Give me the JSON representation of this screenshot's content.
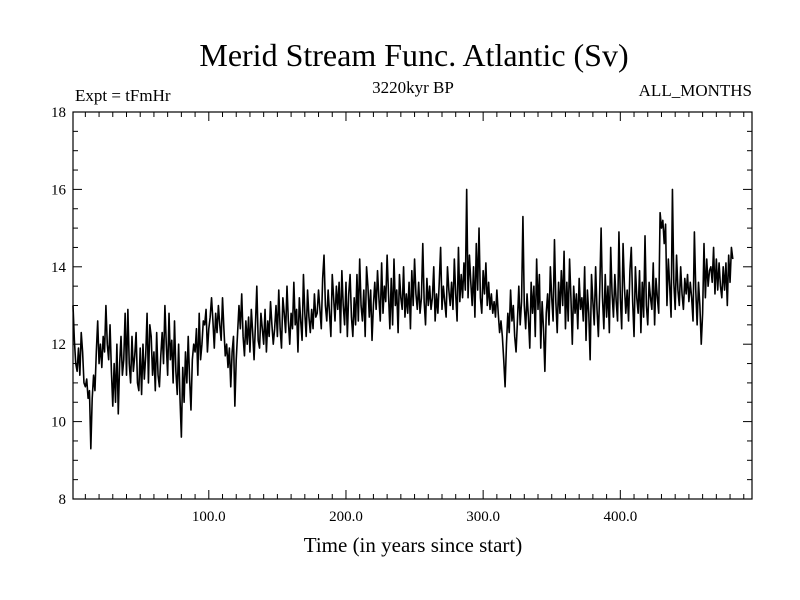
{
  "chart_data": {
    "type": "line",
    "title": "Merid Stream Func. Atlantic (Sv)",
    "left_label": "Expt = tFmHr",
    "center_label": "3220kyr BP",
    "right_label": "ALL_MONTHS",
    "xlabel": "Time (in years since start)",
    "ylabel": "",
    "xlim": [
      1,
      496
    ],
    "ylim": [
      8,
      18
    ],
    "xticks": [
      100,
      200,
      300,
      400
    ],
    "xtick_labels": [
      "100.0",
      "200.0",
      "300.0",
      "400.0"
    ],
    "yticks": [
      8,
      10,
      12,
      14,
      16,
      18
    ],
    "ytick_labels": [
      "8",
      "10",
      "12",
      "14",
      "16",
      "18"
    ],
    "grid": false,
    "line_color": "#000000",
    "series": [
      {
        "name": "Merid Stream Func. Atlantic",
        "x_start": 1,
        "x_step": 1,
        "values": [
          13.0,
          12.1,
          11.5,
          11.3,
          11.9,
          11.2,
          12.3,
          11.8,
          11.0,
          10.9,
          11.1,
          10.6,
          10.8,
          9.3,
          10.6,
          11.2,
          10.8,
          11.8,
          12.6,
          11.5,
          12.0,
          11.4,
          12.2,
          11.8,
          13.0,
          12.0,
          11.6,
          12.5,
          11.3,
          10.4,
          11.5,
          10.5,
          12.0,
          10.2,
          11.5,
          12.2,
          11.2,
          11.6,
          12.8,
          11.2,
          12.9,
          11.5,
          11.0,
          12.2,
          11.3,
          11.7,
          12.3,
          11.0,
          10.8,
          11.9,
          10.7,
          12.0,
          11.1,
          11.7,
          12.8,
          11.0,
          12.5,
          12.2,
          11.2,
          11.8,
          10.8,
          12.3,
          11.2,
          10.9,
          11.7,
          12.3,
          11.5,
          13.0,
          12.0,
          11.2,
          12.8,
          11.6,
          12.1,
          11.0,
          12.6,
          11.3,
          10.7,
          12.0,
          10.6,
          9.6,
          11.4,
          10.5,
          11.8,
          11.0,
          12.2,
          11.1,
          10.3,
          11.6,
          12.0,
          11.8,
          12.4,
          11.2,
          12.8,
          11.6,
          12.0,
          12.6,
          12.5,
          12.9,
          11.8,
          12.4,
          12.7,
          13.2,
          12.6,
          11.9,
          12.8,
          12.3,
          13.0,
          12.5,
          12.1,
          13.2,
          12.4,
          11.7,
          12.0,
          11.4,
          11.9,
          10.9,
          11.8,
          12.2,
          10.4,
          11.6,
          12.3,
          13.0,
          12.4,
          13.3,
          12.2,
          11.7,
          12.6,
          12.0,
          12.7,
          11.8,
          12.9,
          12.3,
          11.6,
          12.5,
          13.5,
          12.1,
          11.9,
          12.8,
          12.4,
          12.0,
          12.9,
          11.8,
          12.6,
          12.2,
          13.1,
          12.5,
          12.0,
          12.4,
          13.0,
          12.2,
          13.4,
          12.4,
          11.9,
          13.2,
          12.8,
          12.3,
          13.5,
          12.6,
          12.0,
          12.8,
          12.4,
          13.6,
          12.5,
          12.9,
          11.8,
          13.2,
          12.6,
          12.1,
          13.8,
          12.8,
          12.2,
          13.4,
          12.7,
          12.3,
          12.9,
          12.4,
          13.3,
          12.7,
          12.8,
          13.4,
          12.9,
          12.4,
          13.7,
          14.3,
          13.0,
          12.6,
          13.4,
          12.8,
          12.2,
          13.8,
          13.2,
          12.6,
          13.5,
          12.9,
          13.6,
          12.3,
          13.9,
          13.0,
          12.5,
          13.6,
          12.2,
          13.3,
          13.8,
          12.7,
          12.2,
          13.2,
          12.5,
          13.8,
          12.6,
          14.2,
          13.0,
          12.6,
          13.4,
          12.2,
          14.0,
          13.5,
          12.7,
          13.4,
          12.1,
          13.0,
          13.6,
          12.9,
          13.9,
          13.2,
          12.6,
          14.1,
          12.8,
          13.5,
          13.1,
          14.3,
          13.3,
          12.4,
          13.7,
          12.5,
          14.2,
          13.0,
          13.4,
          12.3,
          13.8,
          13.2,
          12.9,
          14.0,
          12.7,
          13.3,
          12.8,
          13.6,
          12.4,
          13.9,
          13.0,
          14.2,
          13.3,
          12.9,
          13.6,
          12.8,
          13.2,
          14.6,
          13.1,
          12.5,
          13.7,
          13.0,
          13.5,
          12.9,
          13.2,
          14.0,
          12.6,
          13.3,
          12.8,
          13.6,
          14.5,
          12.9,
          13.5,
          13.1,
          12.7,
          14.0,
          13.4,
          13.0,
          13.6,
          12.9,
          14.2,
          13.3,
          12.6,
          14.5,
          13.1,
          13.8,
          13.2,
          14.1,
          13.4,
          16.0,
          13.2,
          14.3,
          13.6,
          13.0,
          14.0,
          12.7,
          14.6,
          13.4,
          15.0,
          13.2,
          12.8,
          13.9,
          13.3,
          14.1,
          13.0,
          13.6,
          12.9,
          13.3,
          12.8,
          13.1,
          12.7,
          13.4,
          12.8,
          12.3,
          12.6,
          12.2,
          11.6,
          10.9,
          12.0,
          12.8,
          12.3,
          13.4,
          12.6,
          13.0,
          12.2,
          11.8,
          12.6,
          13.5,
          12.5,
          13.1,
          15.3,
          13.0,
          12.4,
          13.3,
          12.7,
          11.9,
          13.6,
          12.8,
          13.5,
          12.2,
          14.2,
          12.9,
          13.8,
          11.9,
          13.1,
          12.4,
          11.3,
          12.8,
          13.3,
          12.5,
          14.0,
          13.2,
          12.6,
          14.7,
          13.1,
          12.3,
          13.6,
          12.8,
          13.9,
          13.0,
          14.4,
          12.4,
          13.6,
          12.6,
          14.2,
          13.2,
          12.0,
          13.5,
          12.8,
          13.3,
          12.4,
          13.7,
          12.9,
          13.2,
          12.6,
          14.0,
          12.1,
          13.4,
          12.8,
          11.6,
          13.8,
          13.1,
          12.5,
          14.0,
          12.9,
          12.2,
          13.4,
          15.0,
          13.2,
          12.4,
          13.8,
          12.7,
          13.5,
          12.3,
          14.5,
          13.3,
          12.7,
          13.8,
          13.1,
          12.6,
          14.9,
          13.2,
          12.4,
          14.6,
          13.5,
          12.8,
          13.4,
          12.6,
          13.9,
          14.5,
          13.1,
          12.2,
          14.0,
          13.2,
          12.8,
          13.9,
          12.3,
          13.6,
          12.7,
          14.8,
          13.0,
          12.5,
          13.6,
          13.2,
          12.9,
          14.1,
          12.5,
          13.7,
          13.2,
          12.8,
          15.4,
          15.0,
          15.2,
          14.6,
          15.1,
          13.0,
          14.2,
          13.5,
          12.7,
          16.0,
          13.6,
          12.9,
          14.3,
          13.4,
          13.0,
          14.0,
          13.3,
          12.9,
          13.7,
          13.3,
          13.8,
          13.1,
          13.6,
          13.2,
          12.6,
          14.9,
          13.4,
          12.5,
          13.6,
          13.0,
          12.0,
          12.8,
          14.6,
          13.2,
          14.2,
          13.5,
          13.9,
          14.0,
          13.6,
          14.5,
          13.3,
          14.2,
          13.4,
          14.1,
          13.5,
          13.2,
          14.0,
          13.4,
          14.1,
          13.0,
          14.3,
          13.6,
          14.5,
          14.2
        ]
      }
    ]
  }
}
